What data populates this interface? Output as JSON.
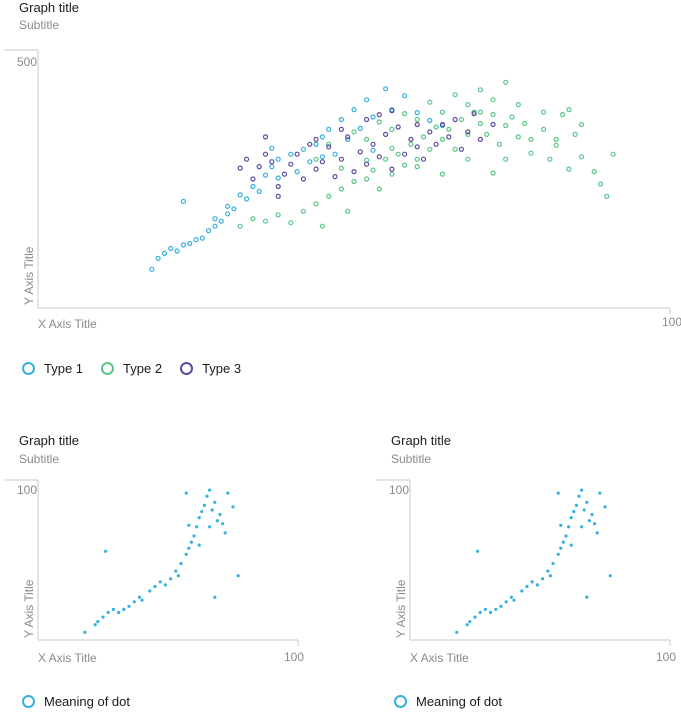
{
  "colors": {
    "type1": "#36b1de",
    "type2": "#5ac687",
    "type3": "#5e4a9c",
    "axis": "#c8c8c8",
    "label": "#8a8a8a"
  },
  "chart_data": [
    {
      "type": "scatter",
      "title": "Graph title",
      "subtitle": "Subtitle",
      "xlabel": "X Axis Title",
      "ylabel": "Y Axis Title",
      "xlim": [
        0,
        100
      ],
      "ylim": [
        0,
        500
      ],
      "x_tick_max_label": "100",
      "y_tick_max_label": "500",
      "marker": "hollow-circle",
      "series": [
        {
          "name": "Type 1",
          "color": "#36b1de",
          "points": [
            [
              18,
              78
            ],
            [
              19,
              100
            ],
            [
              20,
              110
            ],
            [
              21,
              120
            ],
            [
              22,
              115
            ],
            [
              23,
              127
            ],
            [
              24,
              130
            ],
            [
              25,
              138
            ],
            [
              26,
              141
            ],
            [
              27,
              156
            ],
            [
              28,
              165
            ],
            [
              28,
              180
            ],
            [
              29,
              175
            ],
            [
              30,
              190
            ],
            [
              30,
              205
            ],
            [
              31,
              200
            ],
            [
              32,
              228
            ],
            [
              33,
              220
            ],
            [
              34,
              245
            ],
            [
              35,
              235
            ],
            [
              36,
              268
            ],
            [
              37,
              285
            ],
            [
              38,
              300
            ],
            [
              38,
              262
            ],
            [
              40,
              310
            ],
            [
              41,
              275
            ],
            [
              42,
              320
            ],
            [
              43,
              295
            ],
            [
              44,
              330
            ],
            [
              45,
              345
            ],
            [
              46,
              360
            ],
            [
              47,
              310
            ],
            [
              48,
              380
            ],
            [
              49,
              340
            ],
            [
              50,
              400
            ],
            [
              51,
              362
            ],
            [
              52,
              420
            ],
            [
              53,
              385
            ],
            [
              55,
              442
            ],
            [
              56,
              400
            ],
            [
              58,
              428
            ],
            [
              60,
              394
            ],
            [
              62,
              378
            ],
            [
              64,
              368
            ],
            [
              23,
              215
            ],
            [
              37,
              322
            ],
            [
              45,
              305
            ],
            [
              53,
              318
            ]
          ]
        },
        {
          "name": "Type 2",
          "color": "#5ac687",
          "points": [
            [
              32,
              165
            ],
            [
              34,
              180
            ],
            [
              36,
              175
            ],
            [
              38,
              188
            ],
            [
              40,
              172
            ],
            [
              42,
              195
            ],
            [
              44,
              210
            ],
            [
              45,
              165
            ],
            [
              46,
              225
            ],
            [
              48,
              240
            ],
            [
              49,
              195
            ],
            [
              50,
              255
            ],
            [
              52,
              260
            ],
            [
              53,
              278
            ],
            [
              54,
              240
            ],
            [
              55,
              300
            ],
            [
              56,
              270
            ],
            [
              57,
              310
            ],
            [
              58,
              288
            ],
            [
              59,
              330
            ],
            [
              60,
              300
            ],
            [
              61,
              345
            ],
            [
              62,
              320
            ],
            [
              63,
              365
            ],
            [
              64,
              340
            ],
            [
              65,
              360
            ],
            [
              66,
              320
            ],
            [
              67,
              380
            ],
            [
              68,
              350
            ],
            [
              69,
              395
            ],
            [
              70,
              372
            ],
            [
              71,
              350
            ],
            [
              72,
              390
            ],
            [
              73,
              330
            ],
            [
              74,
              368
            ],
            [
              75,
              385
            ],
            [
              76,
              345
            ],
            [
              77,
              372
            ],
            [
              78,
              340
            ],
            [
              80,
              360
            ],
            [
              81,
              300
            ],
            [
              82,
              328
            ],
            [
              83,
              390
            ],
            [
              84,
              280
            ],
            [
              85,
              350
            ],
            [
              86,
              305
            ],
            [
              88,
              275
            ],
            [
              89,
              250
            ],
            [
              90,
              225
            ],
            [
              91,
              310
            ],
            [
              52,
              340
            ],
            [
              56,
              360
            ],
            [
              60,
              380
            ],
            [
              64,
              395
            ],
            [
              68,
              410
            ],
            [
              72,
              420
            ],
            [
              76,
              410
            ],
            [
              80,
              395
            ],
            [
              70,
              440
            ],
            [
              66,
              430
            ],
            [
              62,
              415
            ],
            [
              58,
              392
            ],
            [
              54,
              375
            ],
            [
              50,
              355
            ],
            [
              46,
              330
            ],
            [
              44,
              300
            ],
            [
              48,
              282
            ],
            [
              52,
              298
            ],
            [
              56,
              322
            ],
            [
              60,
              285
            ],
            [
              64,
              270
            ],
            [
              68,
              300
            ],
            [
              72,
              272
            ],
            [
              74,
              300
            ],
            [
              78,
              312
            ],
            [
              82,
              340
            ],
            [
              86,
              370
            ],
            [
              84,
              400
            ],
            [
              74,
              455
            ],
            [
              70,
              395
            ]
          ]
        },
        {
          "name": "Type 3",
          "color": "#5e4a9c",
          "points": [
            [
              32,
              282
            ],
            [
              33,
              300
            ],
            [
              34,
              260
            ],
            [
              35,
              285
            ],
            [
              36,
              310
            ],
            [
              37,
              295
            ],
            [
              38,
              245
            ],
            [
              39,
              270
            ],
            [
              40,
              290
            ],
            [
              41,
              310
            ],
            [
              42,
              260
            ],
            [
              43,
              330
            ],
            [
              44,
              280
            ],
            [
              45,
              295
            ],
            [
              46,
              325
            ],
            [
              47,
              265
            ],
            [
              48,
              300
            ],
            [
              49,
              345
            ],
            [
              50,
              275
            ],
            [
              51,
              315
            ],
            [
              52,
              290
            ],
            [
              53,
              330
            ],
            [
              54,
              305
            ],
            [
              55,
              350
            ],
            [
              56,
              280
            ],
            [
              57,
              365
            ],
            [
              58,
              310
            ],
            [
              59,
              340
            ],
            [
              60,
              325
            ],
            [
              61,
              300
            ],
            [
              62,
              355
            ],
            [
              63,
              330
            ],
            [
              64,
              370
            ],
            [
              65,
              345
            ],
            [
              66,
              380
            ],
            [
              67,
              320
            ],
            [
              68,
              355
            ],
            [
              69,
              392
            ],
            [
              70,
              340
            ],
            [
              72,
              370
            ],
            [
              44,
              340
            ],
            [
              48,
              360
            ],
            [
              52,
              380
            ],
            [
              56,
              398
            ],
            [
              60,
              370
            ],
            [
              38,
              225
            ],
            [
              36,
              345
            ],
            [
              54,
              390
            ]
          ]
        }
      ]
    },
    {
      "type": "scatter",
      "title": "Graph title",
      "subtitle": "Subtitle",
      "xlabel": "X Axis Title",
      "ylabel": "Y Axis Title",
      "xlim": [
        0,
        100
      ],
      "ylim": [
        0,
        100
      ],
      "x_tick_max_label": "100",
      "y_tick_max_label": "100",
      "marker": "small-filled-circle",
      "series": [
        {
          "name": "Meaning of dot",
          "color": "#36b1de",
          "points": [
            [
              18,
              5
            ],
            [
              22,
              10
            ],
            [
              23,
              12
            ],
            [
              25,
              15
            ],
            [
              27,
              18
            ],
            [
              29,
              20
            ],
            [
              31,
              18
            ],
            [
              33,
              20
            ],
            [
              35,
              22
            ],
            [
              37,
              25
            ],
            [
              39,
              28
            ],
            [
              40,
              26
            ],
            [
              43,
              32
            ],
            [
              45,
              35
            ],
            [
              47,
              38
            ],
            [
              49,
              36
            ],
            [
              51,
              40
            ],
            [
              53,
              45
            ],
            [
              55,
              50
            ],
            [
              57,
              56
            ],
            [
              58,
              60
            ],
            [
              59,
              64
            ],
            [
              60,
              68
            ],
            [
              61,
              74
            ],
            [
              62,
              80
            ],
            [
              63,
              84
            ],
            [
              64,
              88
            ],
            [
              65,
              94
            ],
            [
              66,
              98
            ],
            [
              67,
              85
            ],
            [
              68,
              90
            ],
            [
              69,
              78
            ],
            [
              70,
              82
            ],
            [
              71,
              76
            ],
            [
              73,
              96
            ],
            [
              75,
              87
            ],
            [
              77,
              42
            ],
            [
              68,
              28
            ],
            [
              58,
              75
            ],
            [
              62,
              62
            ],
            [
              54,
              42
            ],
            [
              57,
              96
            ],
            [
              26,
              58
            ],
            [
              72,
              70
            ],
            [
              66,
              74
            ]
          ]
        }
      ]
    },
    {
      "type": "scatter",
      "title": "Graph title",
      "subtitle": "Subtitle",
      "xlabel": "X Axis Title",
      "ylabel": "Y Axis Title",
      "xlim": [
        0,
        100
      ],
      "ylim": [
        0,
        100
      ],
      "x_tick_max_label": "100",
      "y_tick_max_label": "100",
      "marker": "small-filled-circle",
      "series": [
        {
          "name": "Meaning of dot",
          "color": "#36b1de",
          "points": [
            [
              18,
              5
            ],
            [
              22,
              10
            ],
            [
              23,
              12
            ],
            [
              25,
              15
            ],
            [
              27,
              18
            ],
            [
              29,
              20
            ],
            [
              31,
              18
            ],
            [
              33,
              20
            ],
            [
              35,
              22
            ],
            [
              37,
              25
            ],
            [
              39,
              28
            ],
            [
              40,
              26
            ],
            [
              43,
              32
            ],
            [
              45,
              35
            ],
            [
              47,
              38
            ],
            [
              49,
              36
            ],
            [
              51,
              40
            ],
            [
              53,
              45
            ],
            [
              55,
              50
            ],
            [
              57,
              56
            ],
            [
              58,
              60
            ],
            [
              59,
              64
            ],
            [
              60,
              68
            ],
            [
              61,
              74
            ],
            [
              62,
              80
            ],
            [
              63,
              84
            ],
            [
              64,
              88
            ],
            [
              65,
              94
            ],
            [
              66,
              98
            ],
            [
              67,
              85
            ],
            [
              68,
              90
            ],
            [
              69,
              78
            ],
            [
              70,
              82
            ],
            [
              71,
              76
            ],
            [
              73,
              96
            ],
            [
              75,
              87
            ],
            [
              77,
              42
            ],
            [
              68,
              28
            ],
            [
              58,
              75
            ],
            [
              62,
              62
            ],
            [
              54,
              42
            ],
            [
              57,
              96
            ],
            [
              26,
              58
            ],
            [
              72,
              70
            ],
            [
              66,
              74
            ]
          ]
        }
      ]
    }
  ]
}
